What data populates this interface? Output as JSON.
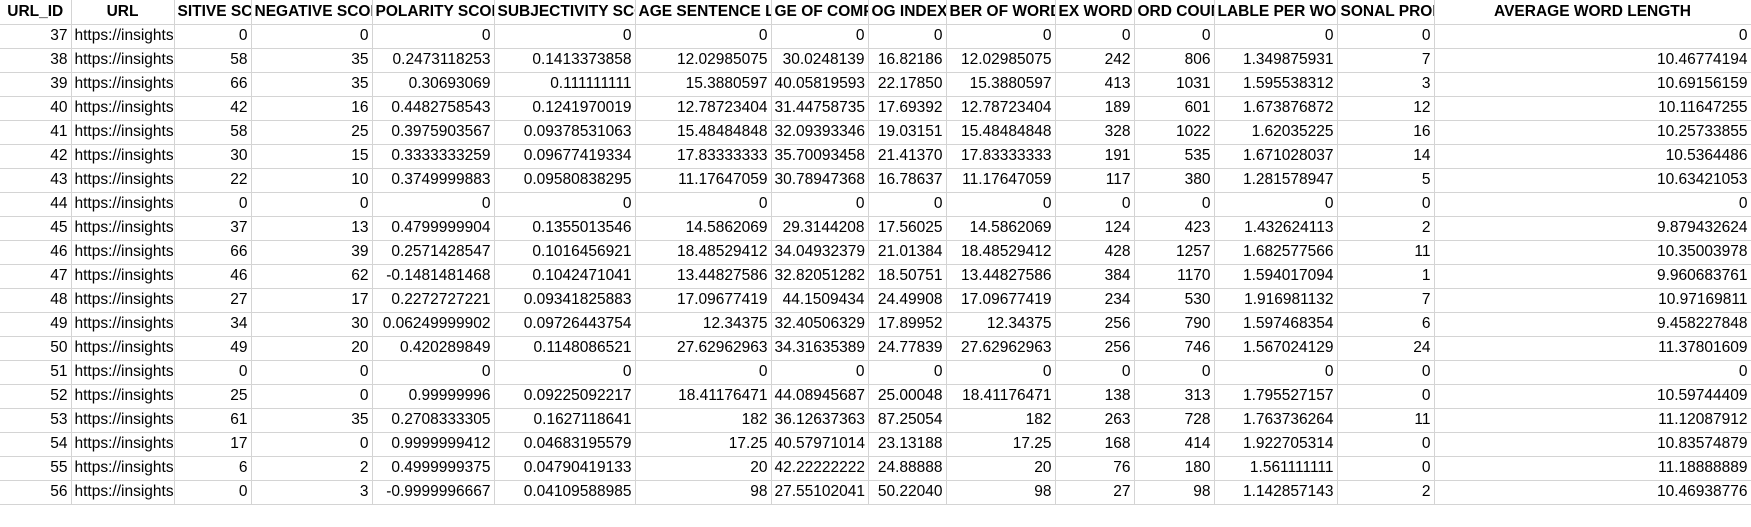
{
  "sheet": {
    "headers": [
      "URL_ID",
      "URL",
      "POSITIVE SCORE",
      "NEGATIVE SCORE",
      "POLARITY SCORE",
      "SUBJECTIVITY SCORE",
      "AVG SENTENCE LENGTH",
      "PERCENTAGE OF COMPLEX WORDS",
      "FOG INDEX",
      "AVG NUMBER OF WORDS PER SENTENCE",
      "COMPLEX WORD COUNT",
      "WORD COUNT",
      "SYLLABLE PER WORD",
      "PERSONAL PRONOUNS",
      "AVERAGE WORD LENGTH"
    ],
    "header_display": [
      "URL_ID",
      "URL",
      "SITIVE SCO",
      "NEGATIVE SCORE",
      "POLARITY SCORE",
      "SUBJECTIVITY SCORE",
      "AGE SENTENCE LE",
      "GE OF COMPL",
      "OG INDEX",
      "BER OF WORDS",
      "EX WORD (",
      "ORD COUN",
      "LABLE PER WO",
      "SONAL PRONO",
      "AVERAGE WORD LENGTH"
    ],
    "rows": [
      [
        "37",
        "https://insights",
        "0",
        "0",
        "0",
        "0",
        "0",
        "0",
        "0",
        "0",
        "0",
        "0",
        "0",
        "0",
        "0"
      ],
      [
        "38",
        "https://insights",
        "58",
        "35",
        "0.2473118253",
        "0.1413373858",
        "12.02985075",
        "30.0248139",
        "16.82186",
        "12.02985075",
        "242",
        "806",
        "1.349875931",
        "7",
        "10.46774194"
      ],
      [
        "39",
        "https://insights",
        "66",
        "35",
        "0.30693069",
        "0.111111111",
        "15.3880597",
        "40.05819593",
        "22.17850",
        "15.3880597",
        "413",
        "1031",
        "1.595538312",
        "3",
        "10.69156159"
      ],
      [
        "40",
        "https://insights",
        "42",
        "16",
        "0.4482758543",
        "0.1241970019",
        "12.78723404",
        "31.44758735",
        "17.69392",
        "12.78723404",
        "189",
        "601",
        "1.673876872",
        "12",
        "10.11647255"
      ],
      [
        "41",
        "https://insights",
        "58",
        "25",
        "0.3975903567",
        "0.09378531063",
        "15.48484848",
        "32.09393346",
        "19.03151",
        "15.48484848",
        "328",
        "1022",
        "1.62035225",
        "16",
        "10.25733855"
      ],
      [
        "42",
        "https://insights",
        "30",
        "15",
        "0.3333333259",
        "0.09677419334",
        "17.83333333",
        "35.70093458",
        "21.41370",
        "17.83333333",
        "191",
        "535",
        "1.671028037",
        "14",
        "10.5364486"
      ],
      [
        "43",
        "https://insights",
        "22",
        "10",
        "0.3749999883",
        "0.09580838295",
        "11.17647059",
        "30.78947368",
        "16.78637",
        "11.17647059",
        "117",
        "380",
        "1.281578947",
        "5",
        "10.63421053"
      ],
      [
        "44",
        "https://insights",
        "0",
        "0",
        "0",
        "0",
        "0",
        "0",
        "0",
        "0",
        "0",
        "0",
        "0",
        "0",
        "0"
      ],
      [
        "45",
        "https://insights",
        "37",
        "13",
        "0.4799999904",
        "0.1355013546",
        "14.5862069",
        "29.3144208",
        "17.56025",
        "14.5862069",
        "124",
        "423",
        "1.432624113",
        "2",
        "9.879432624"
      ],
      [
        "46",
        "https://insights",
        "66",
        "39",
        "0.2571428547",
        "0.1016456921",
        "18.48529412",
        "34.04932379",
        "21.01384",
        "18.48529412",
        "428",
        "1257",
        "1.682577566",
        "11",
        "10.35003978"
      ],
      [
        "47",
        "https://insights",
        "46",
        "62",
        "-0.1481481468",
        "0.1042471041",
        "13.44827586",
        "32.82051282",
        "18.50751",
        "13.44827586",
        "384",
        "1170",
        "1.594017094",
        "1",
        "9.960683761"
      ],
      [
        "48",
        "https://insights",
        "27",
        "17",
        "0.2272727221",
        "0.09341825883",
        "17.09677419",
        "44.1509434",
        "24.49908",
        "17.09677419",
        "234",
        "530",
        "1.916981132",
        "7",
        "10.97169811"
      ],
      [
        "49",
        "https://insights",
        "34",
        "30",
        "0.06249999902",
        "0.09726443754",
        "12.34375",
        "32.40506329",
        "17.89952",
        "12.34375",
        "256",
        "790",
        "1.597468354",
        "6",
        "9.458227848"
      ],
      [
        "50",
        "https://insights",
        "49",
        "20",
        "0.420289849",
        "0.1148086521",
        "27.62962963",
        "34.31635389",
        "24.77839",
        "27.62962963",
        "256",
        "746",
        "1.567024129",
        "24",
        "11.37801609"
      ],
      [
        "51",
        "https://insights",
        "0",
        "0",
        "0",
        "0",
        "0",
        "0",
        "0",
        "0",
        "0",
        "0",
        "0",
        "0",
        "0"
      ],
      [
        "52",
        "https://insights",
        "25",
        "0",
        "0.99999996",
        "0.09225092217",
        "18.41176471",
        "44.08945687",
        "25.00048",
        "18.41176471",
        "138",
        "313",
        "1.795527157",
        "0",
        "10.59744409"
      ],
      [
        "53",
        "https://insights",
        "61",
        "35",
        "0.2708333305",
        "0.1627118641",
        "182",
        "36.12637363",
        "87.25054",
        "182",
        "263",
        "728",
        "1.763736264",
        "11",
        "11.12087912"
      ],
      [
        "54",
        "https://insights",
        "17",
        "0",
        "0.9999999412",
        "0.04683195579",
        "17.25",
        "40.57971014",
        "23.13188",
        "17.25",
        "168",
        "414",
        "1.922705314",
        "0",
        "10.83574879"
      ],
      [
        "55",
        "https://insights",
        "6",
        "2",
        "0.4999999375",
        "0.04790419133",
        "20",
        "42.22222222",
        "24.88888",
        "20",
        "76",
        "180",
        "1.561111111",
        "0",
        "11.18888889"
      ],
      [
        "56",
        "https://insights",
        "0",
        "3",
        "-0.9999996667",
        "0.04109588985",
        "98",
        "27.55102041",
        "50.22040",
        "98",
        "27",
        "98",
        "1.142857143",
        "2",
        "10.46938776"
      ]
    ]
  }
}
